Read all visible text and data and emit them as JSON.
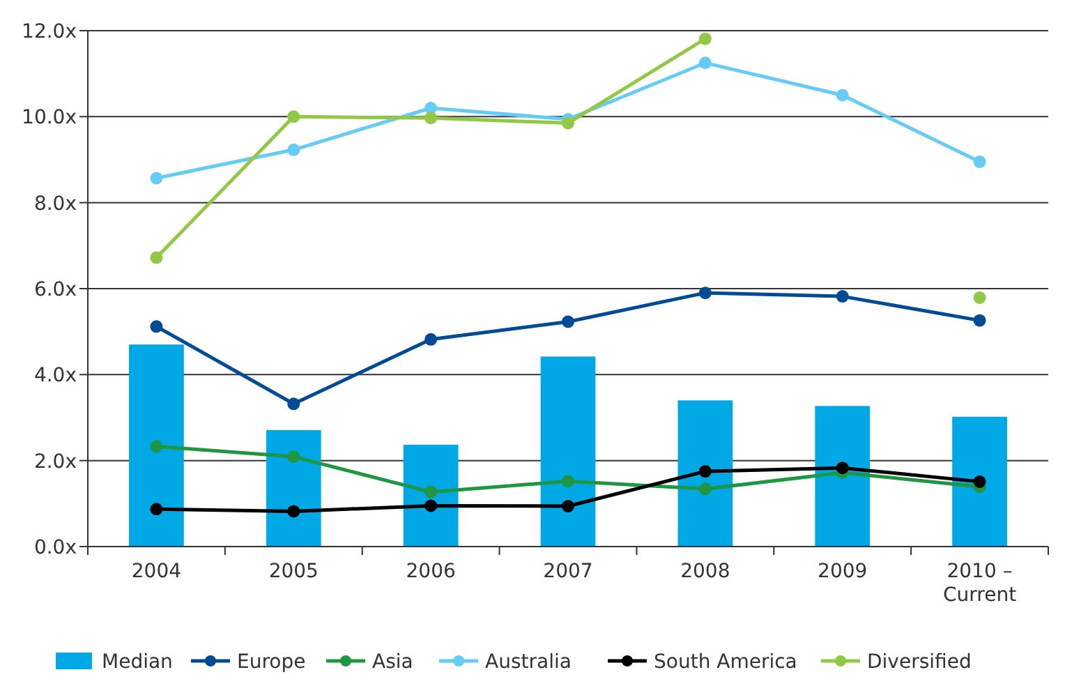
{
  "chart_data": {
    "type": "bar",
    "categories": [
      "2004",
      "2005",
      "2006",
      "2007",
      "2008",
      "2009",
      "2010 – Current"
    ],
    "series": [
      {
        "name": "Median",
        "color": "#00a8e6",
        "values": [
          4.7,
          2.71,
          2.37,
          4.42,
          3.4,
          3.27,
          3.02
        ]
      },
      {
        "name": "Europe",
        "type": "line",
        "color": "#004b93",
        "values": [
          5.12,
          3.32,
          4.82,
          5.23,
          5.9,
          5.82,
          5.26
        ]
      },
      {
        "name": "Asia",
        "type": "line",
        "color": "#1e9642",
        "values": [
          2.33,
          2.09,
          1.27,
          1.52,
          1.34,
          1.72,
          1.39
        ]
      },
      {
        "name": "Australia",
        "type": "line",
        "color": "#66ccf5",
        "values": [
          8.57,
          9.23,
          10.2,
          9.94,
          11.25,
          10.5,
          8.95
        ]
      },
      {
        "name": "South America",
        "type": "line",
        "color": "#000000",
        "values": [
          0.87,
          0.82,
          0.95,
          0.94,
          1.75,
          1.83,
          1.51
        ]
      },
      {
        "name": "Diversified",
        "type": "line",
        "color": "#92c846",
        "values": [
          6.72,
          10.0,
          9.97,
          9.85,
          11.81,
          null,
          5.79
        ]
      }
    ],
    "ylim": [
      0,
      12
    ],
    "yticks": [
      {
        "value": 0,
        "label": "0.0x"
      },
      {
        "value": 2,
        "label": "2.0x"
      },
      {
        "value": 4,
        "label": "4.0x"
      },
      {
        "value": 6,
        "label": "6.0x"
      },
      {
        "value": 8,
        "label": "8.0x"
      },
      {
        "value": 10,
        "label": "10.0x"
      },
      {
        "value": 12,
        "label": "12.0x"
      }
    ],
    "grid": "y",
    "legend": "bottom",
    "marker": "circle",
    "line_style": "solid"
  }
}
